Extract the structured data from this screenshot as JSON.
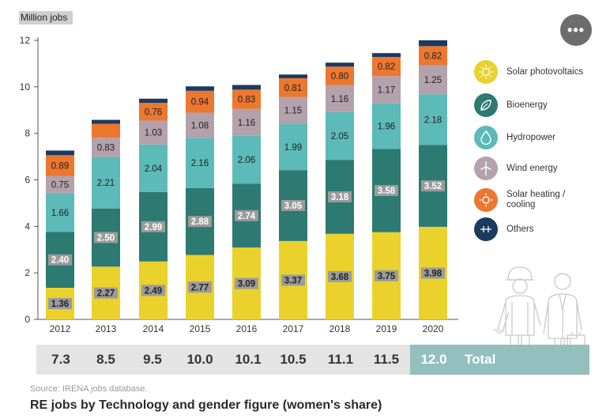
{
  "header": {
    "ylabel": "Million jobs",
    "menu_icon": "more-icon"
  },
  "chart_data": {
    "type": "bar",
    "stacked": true,
    "categories": [
      "2012",
      "2013",
      "2014",
      "2015",
      "2016",
      "2017",
      "2018",
      "2019",
      "2020"
    ],
    "series": [
      {
        "name": "Solar photovoltaics",
        "color": "#ead12c",
        "values": [
          1.36,
          2.27,
          2.49,
          2.77,
          3.09,
          3.37,
          3.68,
          3.75,
          3.98
        ],
        "labels": [
          "1.36",
          "2.27",
          "2.49",
          "2.77",
          "3.09",
          "3.37",
          "3.68",
          "3.75",
          "3.98"
        ]
      },
      {
        "name": "Bioenergy",
        "color": "#2c7a71",
        "values": [
          2.4,
          2.5,
          2.99,
          2.88,
          2.74,
          3.05,
          3.18,
          3.58,
          3.52
        ],
        "labels": [
          "2.40",
          "2.50",
          "2.99",
          "2.88",
          "2.74",
          "3.05",
          "3.18",
          "3.58",
          "3.52"
        ]
      },
      {
        "name": "Hydropower",
        "color": "#5cbab8",
        "values": [
          1.66,
          2.21,
          2.04,
          2.16,
          2.06,
          1.99,
          2.05,
          1.96,
          2.18
        ],
        "labels": [
          "1.66",
          "2.21",
          "2.04",
          "2.16",
          "2.06",
          "1.99",
          "2.05",
          "1.96",
          "2.18"
        ]
      },
      {
        "name": "Wind energy",
        "color": "#b3a1ab",
        "values": [
          0.75,
          0.83,
          1.03,
          1.08,
          1.16,
          1.15,
          1.16,
          1.17,
          1.25
        ],
        "labels": [
          "0.75",
          "0.83",
          "1.03",
          "1.08",
          "1.16",
          "1.15",
          "1.16",
          "1.17",
          "1.25"
        ]
      },
      {
        "name": "Solar heating / cooling",
        "color": "#ec772f",
        "values": [
          0.89,
          0.6,
          0.76,
          0.94,
          0.83,
          0.81,
          0.8,
          0.82,
          0.82
        ],
        "labels": [
          "0.89",
          "",
          "0.76",
          "0.94",
          "0.83",
          "0.81",
          "0.80",
          "0.82",
          "0.82"
        ]
      },
      {
        "name": "Others",
        "color": "#1c3a5e",
        "values": [
          0.2,
          0.17,
          0.18,
          0.19,
          0.2,
          0.16,
          0.17,
          0.17,
          0.25
        ],
        "labels": [
          "",
          "",
          "",
          "",
          "",
          "",
          "",
          "",
          ""
        ]
      }
    ],
    "ylim": [
      0,
      12
    ],
    "yticks": [
      0,
      2,
      4,
      6,
      8,
      10,
      12
    ],
    "ylabel": "Million jobs",
    "grid": false,
    "legend_position": "right",
    "label_box_series": [
      0,
      1
    ],
    "label_box_color": "#9b9b9b"
  },
  "legend": {
    "items": [
      {
        "label": "Solar photovoltaics",
        "icon": "sun-icon",
        "color": "#ead12c"
      },
      {
        "label": "Bioenergy",
        "icon": "leaf-icon",
        "color": "#2c7a71"
      },
      {
        "label": "Hydropower",
        "icon": "water-drop-icon",
        "color": "#5cbab8"
      },
      {
        "label": "Wind energy",
        "icon": "wind-turbine-icon",
        "color": "#b3a1ab"
      },
      {
        "label": "Solar heating / cooling",
        "icon": "sun-heat-icon",
        "color": "#ec772f"
      },
      {
        "label": "Others",
        "icon": "network-icon",
        "color": "#1c3a5e"
      }
    ]
  },
  "totals": {
    "values": [
      "7.3",
      "8.5",
      "9.5",
      "10.0",
      "10.1",
      "10.5",
      "11.1",
      "11.5",
      "12.0"
    ],
    "label": "Total",
    "highlight_color": "#93bfbf"
  },
  "footer": {
    "source": "Source: IRENA jobs database.",
    "caption": "RE jobs by Technology and gender figure (women's share)"
  }
}
